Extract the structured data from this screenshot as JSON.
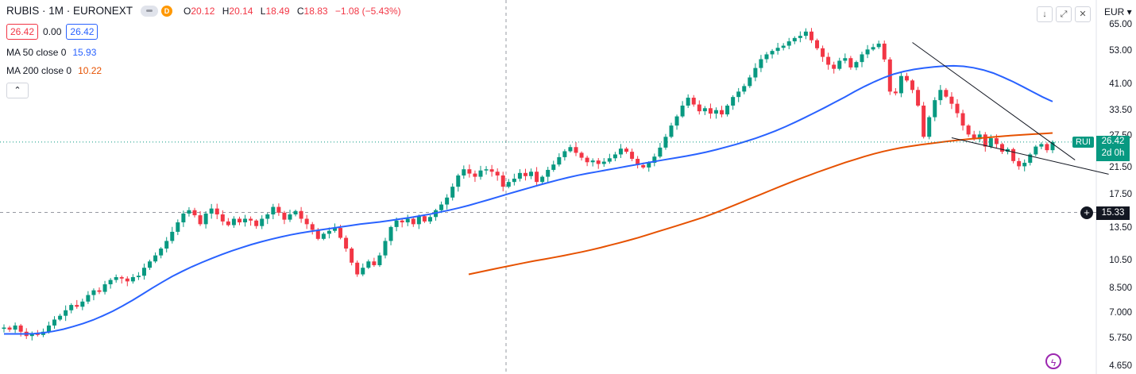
{
  "header": {
    "symbol": "RUBIS · 1M · EURONEXT",
    "d_badge": "D",
    "ohlc": [
      {
        "k": "O",
        "v": "20.12"
      },
      {
        "k": "H",
        "v": "20.14"
      },
      {
        "k": "L",
        "v": "18.49"
      },
      {
        "k": "C",
        "v": "18.83"
      }
    ],
    "change": "−1.08 (−5.43%)",
    "bid": "26.42",
    "spread": "0.00",
    "ask": "26.42",
    "collapse_icon": "chevron-up-icon"
  },
  "indicators": [
    {
      "label": "MA 50 close 0",
      "value": "15.93",
      "color": "#2962ff"
    },
    {
      "label": "MA 200 close 0",
      "value": "10.22",
      "color": "#e65100"
    }
  ],
  "toolbar": {
    "icons": [
      "arrow-down-icon",
      "expand-icon",
      "close-icon"
    ],
    "currency": "EUR"
  },
  "price_tag": {
    "symbol": "RUI",
    "price": "26.42",
    "countdown": "2d 0h"
  },
  "crosshair_price": "15.33",
  "colors": {
    "up": "#089981",
    "down": "#f23645",
    "ma50": "#2962ff",
    "ma200": "#e65100"
  },
  "chart_data": {
    "type": "candlestick",
    "y_scale": "log",
    "ylim": [
      4.65,
      70
    ],
    "y_ticks": [
      "65.00",
      "53.00",
      "41.00",
      "33.50",
      "27.50",
      "21.50",
      "17.50",
      "13.50",
      "10.50",
      "8.500",
      "7.000",
      "5.750",
      "4.650"
    ],
    "close": [
      6.3,
      6.2,
      6.4,
      6.1,
      5.9,
      6.0,
      5.95,
      6.1,
      6.4,
      6.7,
      6.9,
      7.2,
      7.5,
      7.4,
      7.7,
      8.1,
      8.4,
      8.3,
      8.8,
      9.1,
      9.3,
      9.2,
      9.0,
      9.3,
      9.4,
      10.0,
      10.5,
      11.0,
      11.6,
      12.3,
      13.2,
      14.2,
      15.2,
      15.6,
      15.0,
      14.0,
      15.2,
      15.8,
      15.1,
      14.3,
      13.9,
      14.6,
      14.2,
      14.6,
      14.4,
      13.8,
      14.6,
      15.1,
      16.0,
      15.3,
      14.5,
      15.1,
      15.5,
      14.6,
      14.0,
      13.4,
      12.5,
      13.0,
      13.3,
      13.6,
      12.6,
      11.6,
      10.4,
      9.5,
      10.0,
      10.5,
      10.2,
      11.0,
      12.3,
      13.7,
      14.4,
      14.2,
      14.6,
      14.0,
      14.9,
      14.3,
      14.8,
      15.6,
      16.3,
      17.2,
      18.7,
      20.4,
      21.4,
      20.7,
      20.2,
      21.2,
      21.4,
      21.0,
      20.4,
      18.7,
      19.4,
      19.9,
      20.8,
      20.3,
      21.0,
      19.4,
      20.2,
      21.3,
      22.2,
      23.5,
      24.6,
      25.4,
      24.3,
      23.4,
      22.6,
      22.9,
      22.3,
      22.7,
      23.3,
      24.0,
      25.1,
      24.5,
      23.2,
      22.1,
      21.7,
      22.5,
      23.6,
      25.3,
      27.5,
      30.0,
      32.2,
      35.0,
      37.2,
      35.3,
      33.5,
      34.3,
      32.9,
      33.8,
      32.7,
      35.0,
      37.4,
      39.0,
      40.7,
      43.5,
      46.8,
      50.1,
      52.0,
      53.4,
      54.7,
      55.6,
      57.5,
      59.0,
      60.0,
      62.0,
      58.0,
      54.5,
      51.0,
      48.0,
      46.5,
      49.5,
      50.5,
      47.0,
      49.0,
      52.0,
      54.0,
      55.0,
      56.5,
      50.0,
      39.0,
      38.5,
      44.0,
      42.5,
      39.5,
      35.0,
      27.5,
      32.0,
      36.5,
      39.5,
      37.5,
      35.5,
      33.0,
      30.0,
      28.0,
      27.0,
      28.0,
      25.5,
      27.2,
      26.0,
      24.5,
      25.0,
      22.8,
      21.9,
      22.5,
      24.0,
      25.5,
      26.0,
      24.8,
      26.42
    ],
    "ma50": [
      6.0,
      6.0,
      6.0,
      6.01,
      6.05,
      6.12,
      6.22,
      6.35,
      6.5,
      6.68,
      6.9,
      7.15,
      7.45,
      7.78,
      8.15,
      8.55,
      8.95,
      9.35,
      9.72,
      10.08,
      10.42,
      10.75,
      11.07,
      11.38,
      11.68,
      11.96,
      12.22,
      12.46,
      12.69,
      12.9,
      13.08,
      13.24,
      13.4,
      13.55,
      13.7,
      13.85,
      14.0,
      14.12,
      14.25,
      14.4,
      14.56,
      14.73,
      14.92,
      15.12,
      15.35,
      15.6,
      15.88,
      16.2,
      16.55,
      16.92,
      17.3,
      17.7,
      18.1,
      18.5,
      18.9,
      19.3,
      19.7,
      20.08,
      20.42,
      20.72,
      21.0,
      21.3,
      21.6,
      21.9,
      22.2,
      22.5,
      22.8,
      23.1,
      23.4,
      23.7,
      24.05,
      24.45,
      24.9,
      25.4,
      25.95,
      26.55,
      27.2,
      27.95,
      28.8,
      29.75,
      30.8,
      31.95,
      33.2,
      34.5,
      35.9,
      37.4,
      39.0,
      40.6,
      42.1,
      43.5,
      44.7,
      45.6,
      46.3,
      46.8,
      47.2,
      47.5,
      47.6,
      47.4,
      46.9,
      46.1,
      45.0,
      43.6,
      42.1,
      40.5,
      38.9,
      37.4,
      36.1
    ],
    "ma200": [
      9.5,
      9.65,
      9.8,
      9.95,
      10.1,
      10.25,
      10.4,
      10.55,
      10.68,
      10.82,
      10.97,
      11.13,
      11.3,
      11.48,
      11.68,
      11.9,
      12.12,
      12.36,
      12.62,
      12.9,
      13.2,
      13.5,
      13.8,
      14.12,
      14.45,
      14.8,
      15.2,
      15.65,
      16.12,
      16.6,
      17.1,
      17.62,
      18.15,
      18.7,
      19.25,
      19.8,
      20.35,
      20.9,
      21.45,
      22.0,
      22.55,
      23.08,
      23.6,
      24.1,
      24.55,
      24.95,
      25.3,
      25.6,
      25.88,
      26.12,
      26.35,
      26.58,
      26.8,
      27.0,
      27.18,
      27.35,
      27.52,
      27.68,
      27.82,
      27.95,
      28.08,
      28.2,
      28.32
    ]
  }
}
